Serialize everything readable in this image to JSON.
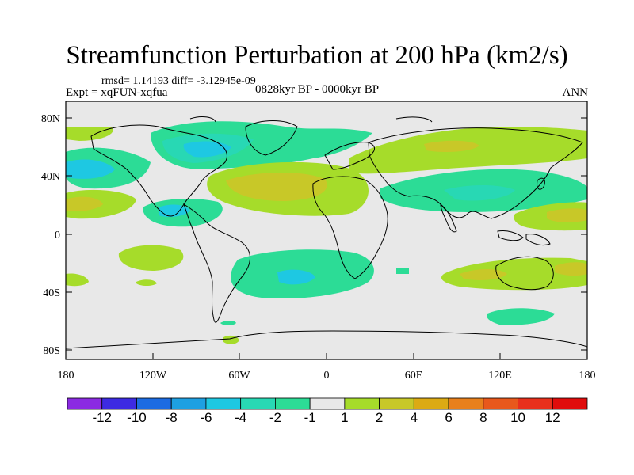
{
  "header": {
    "title": "Streamfunction Perturbation at 200 hPa (km2/s)",
    "stats": "rmsd= 1.14193 diff= -3.12945e-09",
    "experiment": "Expt = xqFUN-xqfua",
    "period": "0828kyr BP - 0000kyr BP",
    "season": "ANN"
  },
  "map": {
    "projection": "cylindrical equidistant",
    "lat_ticks": [
      "80N",
      "40N",
      "0",
      "40S",
      "80S"
    ],
    "lon_ticks": [
      "180",
      "120W",
      "60W",
      "0",
      "60E",
      "120E",
      "180"
    ],
    "background_color": "#e8e8e8",
    "coastline_color": "#000000"
  },
  "colorbar": {
    "labels": [
      "-12",
      "-10",
      "-8",
      "-6",
      "-4",
      "-2",
      "-1",
      "1",
      "2",
      "4",
      "6",
      "8",
      "10",
      "12"
    ],
    "colors": [
      "#8b2be2",
      "#3d2be2",
      "#1c6be2",
      "#1ea0e2",
      "#1ec8e2",
      "#28d8b4",
      "#2cdc96",
      "#e8e8e8",
      "#a6dc2a",
      "#c8c828",
      "#dcaa14",
      "#e8801c",
      "#e8581c",
      "#e8301c",
      "#e00c0c"
    ]
  }
}
